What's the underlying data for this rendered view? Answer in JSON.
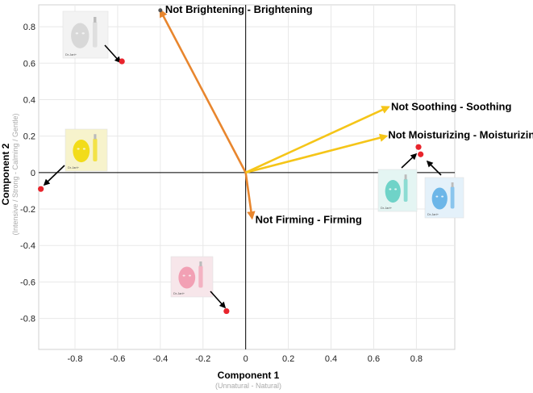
{
  "chart_data": {
    "type": "scatter",
    "xlabel": "Component 1",
    "xlabel_sub": "(Unnatural - Natural)",
    "ylabel": "Component 2",
    "ylabel_sub": "(Intensive / Strong - Calming / Gentle)",
    "xlim": [
      -0.97,
      0.98
    ],
    "ylim": [
      -0.97,
      0.92
    ],
    "xticks": [
      -0.8,
      -0.6,
      -0.4,
      -0.2,
      0,
      0.2,
      0.4,
      0.6,
      0.8
    ],
    "xtick_labels": [
      "-0.8",
      "-0.6",
      "-0.4",
      "-0.2",
      "0",
      "0.2",
      "0.4",
      "0.6",
      "0.8"
    ],
    "yticks": [
      0.8,
      0.6,
      0.4,
      0.2,
      0,
      -0.2,
      -0.4,
      -0.6,
      -0.8
    ],
    "ytick_labels": [
      "0.8",
      "0.6",
      "0.4",
      "0.2",
      "0",
      "-0.2",
      "-0.4",
      "-0.6",
      "-0.8"
    ],
    "grid": true,
    "vectors": [
      {
        "label": "Not Brightening - Brightening",
        "x": -0.4,
        "y": 0.89,
        "color": "#e8862e"
      },
      {
        "label": "Not Firming - Firming",
        "x": 0.03,
        "y": -0.25,
        "color": "#e8862e"
      },
      {
        "label": "Not Soothing - Soothing",
        "x": 0.67,
        "y": 0.36,
        "color": "#f5c518"
      },
      {
        "label": "Not Moisturizing - Moisturizing",
        "x": 0.66,
        "y": 0.2,
        "color": "#f5c518"
      }
    ],
    "points": [
      {
        "name": "white-mask",
        "x": -0.58,
        "y": 0.61,
        "color": "#e8242c"
      },
      {
        "name": "yellow-mask",
        "x": -0.96,
        "y": -0.09,
        "color": "#e8242c"
      },
      {
        "name": "pink-mask",
        "x": -0.09,
        "y": -0.76,
        "color": "#e8242c"
      },
      {
        "name": "teal-mask",
        "x": 0.81,
        "y": 0.14,
        "color": "#e8242c"
      },
      {
        "name": "blue-mask",
        "x": 0.82,
        "y": 0.1,
        "color": "#e8242c"
      }
    ],
    "products": [
      {
        "name": "white-mask",
        "box_color": "#f3f3f3",
        "face_color": "#d8d8d8",
        "brand": "Dr.Jart+"
      },
      {
        "name": "yellow-mask",
        "box_color": "#f7f3cc",
        "face_color": "#f2dc1a",
        "brand": "Dr.Jart+"
      },
      {
        "name": "pink-mask",
        "box_color": "#f7e6ea",
        "face_color": "#f2a0b4",
        "brand": "Dr.Jart+"
      },
      {
        "name": "teal-mask",
        "box_color": "#e4f5f3",
        "face_color": "#6fd3c8",
        "brand": "Dr.Jart+"
      },
      {
        "name": "blue-mask",
        "box_color": "#e4f1fa",
        "face_color": "#6cb6e8",
        "brand": "Dr.Jart+"
      }
    ]
  }
}
